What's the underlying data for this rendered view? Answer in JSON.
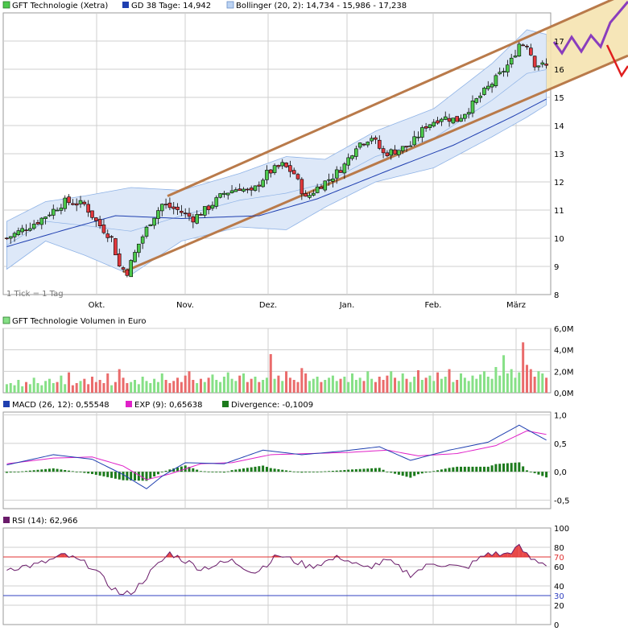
{
  "colors": {
    "candle_up": "#4cc84c",
    "candle_down": "#e2383d",
    "sma": "#1f3fb0",
    "bollinger_band": "#dde8f8",
    "bollinger_line": "#8fb3e6",
    "channel": "#b97a4a",
    "channel_fill": "#f5e3b0",
    "forecast_up": "#8a3dbd",
    "forecast_down": "#e01e1e",
    "macd": "#1f3fb0",
    "signal": "#e020c8",
    "divergence": "#1c7a1c",
    "volume_up": "#86e086",
    "volume_down": "#ea6b6b",
    "rsi": "#6a1b6a",
    "rsi_70": "#e03030",
    "rsi_30": "#3040c0"
  },
  "price_panel": {
    "legend": [
      {
        "label": "GFT Technologie (Xetra)",
        "swatch": "#4cc84c"
      },
      {
        "label": "GD 38 Tage: 14,942",
        "swatch": "#1f3fb0"
      },
      {
        "label": "Bollinger (20, 2): 14,734 - 15,986 - 17,238",
        "swatch": "#8fb3e6"
      }
    ],
    "note": "1 Tick = 1 Tag",
    "y_ticks": [
      "8",
      "9",
      "10",
      "11",
      "12",
      "13",
      "14",
      "15",
      "16",
      "17"
    ],
    "x_ticks": [
      "Okt.",
      "Nov.",
      "Dez.",
      "Jan.",
      "Feb.",
      "März"
    ]
  },
  "volume_panel": {
    "legend": [
      {
        "label": "GFT Technologie Volumen in Euro",
        "swatch": "#86e086"
      }
    ],
    "y_ticks": [
      "0,0M",
      "2,0M",
      "4,0M",
      "6,0M"
    ]
  },
  "macd_panel": {
    "legend": [
      {
        "label": "MACD (26, 12): 0,55548",
        "swatch": "#1f3fb0"
      },
      {
        "label": "EXP (9): 0,65638",
        "swatch": "#e020c8"
      },
      {
        "label": "Divergence: -0,1009",
        "swatch": "#1c7a1c"
      }
    ],
    "y_ticks": [
      "-0,5",
      "0,0",
      "0,5",
      "1,0"
    ]
  },
  "rsi_panel": {
    "legend": [
      {
        "label": "RSI (14): 62,966",
        "swatch": "#6a1b6a"
      }
    ],
    "y_ticks": [
      "0",
      "20",
      "30",
      "40",
      "60",
      "70",
      "80",
      "100"
    ]
  },
  "chart_data": {
    "type": "candlestick",
    "title": "GFT Technologie (Xetra)",
    "x_months": [
      "Okt.",
      "Nov.",
      "Dez.",
      "Jan.",
      "Feb.",
      "März"
    ],
    "price_anchors": [
      [
        0,
        10.0
      ],
      [
        8,
        10.6
      ],
      [
        15,
        11.3
      ],
      [
        20,
        11.2
      ],
      [
        23,
        10.6
      ],
      [
        27,
        10.0
      ],
      [
        29,
        9.0
      ],
      [
        31,
        8.8
      ],
      [
        34,
        9.8
      ],
      [
        37,
        10.6
      ],
      [
        40,
        11.2
      ],
      [
        44,
        11.0
      ],
      [
        48,
        10.7
      ],
      [
        52,
        11.1
      ],
      [
        56,
        11.6
      ],
      [
        60,
        11.8
      ],
      [
        63,
        11.6
      ],
      [
        67,
        12.3
      ],
      [
        71,
        12.6
      ],
      [
        74,
        12.3
      ],
      [
        77,
        11.4
      ],
      [
        80,
        11.8
      ],
      [
        84,
        12.2
      ],
      [
        87,
        12.6
      ],
      [
        90,
        13.3
      ],
      [
        94,
        13.6
      ],
      [
        97,
        13.0
      ],
      [
        100,
        13.1
      ],
      [
        104,
        13.3
      ],
      [
        108,
        14.0
      ],
      [
        112,
        14.3
      ],
      [
        116,
        14.2
      ],
      [
        119,
        14.6
      ],
      [
        123,
        15.2
      ],
      [
        127,
        15.8
      ],
      [
        130,
        16.3
      ],
      [
        132,
        16.9
      ],
      [
        134,
        16.9
      ],
      [
        136,
        16.2
      ],
      [
        139,
        16.1
      ]
    ],
    "sma38_anchors": [
      [
        0,
        9.7
      ],
      [
        15,
        10.3
      ],
      [
        28,
        10.8
      ],
      [
        45,
        10.7
      ],
      [
        65,
        10.8
      ],
      [
        80,
        11.4
      ],
      [
        100,
        12.5
      ],
      [
        115,
        13.3
      ],
      [
        130,
        14.3
      ],
      [
        139,
        14.94
      ]
    ],
    "bollinger_anchors": [
      [
        0,
        10.6,
        8.9
      ],
      [
        10,
        11.3,
        9.9
      ],
      [
        20,
        11.5,
        9.4
      ],
      [
        32,
        11.8,
        8.7
      ],
      [
        45,
        11.7,
        9.9
      ],
      [
        60,
        12.3,
        10.4
      ],
      [
        72,
        12.9,
        10.3
      ],
      [
        82,
        12.8,
        11.1
      ],
      [
        95,
        13.8,
        12.0
      ],
      [
        110,
        14.6,
        12.5
      ],
      [
        125,
        16.2,
        13.6
      ],
      [
        134,
        17.4,
        14.3
      ],
      [
        139,
        17.24,
        14.73
      ]
    ],
    "volume_millions": [
      0.8,
      0.9,
      0.7,
      1.2,
      0.6,
      1.0,
      0.8,
      1.4,
      0.9,
      0.7,
      1.1,
      1.3,
      0.9,
      1.0,
      1.6,
      0.8,
      1.9,
      0.7,
      0.9,
      1.1,
      1.3,
      0.8,
      1.5,
      1.0,
      1.2,
      0.9,
      1.8,
      0.7,
      1.0,
      2.2,
      1.4,
      0.9,
      1.0,
      1.2,
      0.8,
      1.5,
      1.1,
      0.9,
      1.3,
      1.0,
      1.8,
      1.2,
      0.9,
      1.1,
      1.4,
      1.0,
      1.6,
      2.0,
      1.2,
      0.9,
      1.3,
      1.0,
      1.4,
      1.7,
      1.2,
      1.0,
      1.5,
      1.9,
      1.3,
      1.1,
      1.6,
      1.8,
      1.0,
      1.3,
      1.5,
      1.0,
      1.2,
      1.4,
      3.6,
      1.3,
      1.6,
      1.1,
      2.0,
      1.4,
      1.2,
      1.0,
      2.3,
      1.8,
      1.1,
      1.3,
      1.5,
      1.0,
      1.2,
      1.4,
      1.6,
      1.1,
      1.3,
      1.5,
      1.0,
      1.8,
      1.2,
      1.4,
      1.1,
      2.0,
      1.3,
      1.0,
      1.5,
      1.2,
      1.6,
      2.0,
      1.4,
      1.1,
      1.8,
      1.3,
      1.0,
      1.5,
      2.1,
      1.2,
      1.4,
      1.6,
      1.1,
      1.9,
      1.3,
      1.5,
      2.2,
      1.0,
      1.2,
      1.8,
      1.4,
      1.1,
      1.6,
      1.3,
      1.7,
      2.0,
      1.5,
      1.3,
      2.4,
      1.6,
      3.5,
      1.8,
      2.2,
      1.4,
      1.9,
      4.7,
      2.6,
      2.2,
      1.5,
      2.0,
      1.8,
      1.4
    ],
    "macd_anchors": [
      [
        0,
        0.12
      ],
      [
        12,
        0.3
      ],
      [
        22,
        0.22
      ],
      [
        30,
        -0.05
      ],
      [
        36,
        -0.3
      ],
      [
        40,
        -0.08
      ],
      [
        46,
        0.16
      ],
      [
        56,
        0.14
      ],
      [
        66,
        0.38
      ],
      [
        76,
        0.3
      ],
      [
        86,
        0.36
      ],
      [
        96,
        0.44
      ],
      [
        104,
        0.2
      ],
      [
        114,
        0.38
      ],
      [
        124,
        0.52
      ],
      [
        132,
        0.82
      ],
      [
        139,
        0.556
      ]
    ],
    "signal_anchors": [
      [
        0,
        0.14
      ],
      [
        12,
        0.24
      ],
      [
        22,
        0.26
      ],
      [
        30,
        0.1
      ],
      [
        36,
        -0.14
      ],
      [
        42,
        -0.04
      ],
      [
        50,
        0.14
      ],
      [
        58,
        0.16
      ],
      [
        68,
        0.3
      ],
      [
        78,
        0.32
      ],
      [
        88,
        0.34
      ],
      [
        98,
        0.38
      ],
      [
        106,
        0.28
      ],
      [
        116,
        0.32
      ],
      [
        126,
        0.46
      ],
      [
        134,
        0.72
      ],
      [
        139,
        0.656
      ]
    ],
    "rsi_anchors": [
      [
        0,
        58
      ],
      [
        8,
        62
      ],
      [
        15,
        72
      ],
      [
        22,
        60
      ],
      [
        26,
        42
      ],
      [
        30,
        30
      ],
      [
        33,
        36
      ],
      [
        37,
        54
      ],
      [
        42,
        74
      ],
      [
        50,
        58
      ],
      [
        58,
        66
      ],
      [
        64,
        54
      ],
      [
        70,
        72
      ],
      [
        78,
        60
      ],
      [
        86,
        70
      ],
      [
        92,
        58
      ],
      [
        98,
        66
      ],
      [
        104,
        52
      ],
      [
        110,
        64
      ],
      [
        118,
        58
      ],
      [
        124,
        74
      ],
      [
        128,
        72
      ],
      [
        132,
        80
      ],
      [
        135,
        68
      ],
      [
        139,
        62.97
      ]
    ],
    "rsi_levels": [
      70,
      30
    ],
    "channel": {
      "start_index": 30,
      "upper_start": 10.8,
      "lower_start": 8.8,
      "upper_end": 17.5,
      "lower_end": 15.3
    }
  }
}
